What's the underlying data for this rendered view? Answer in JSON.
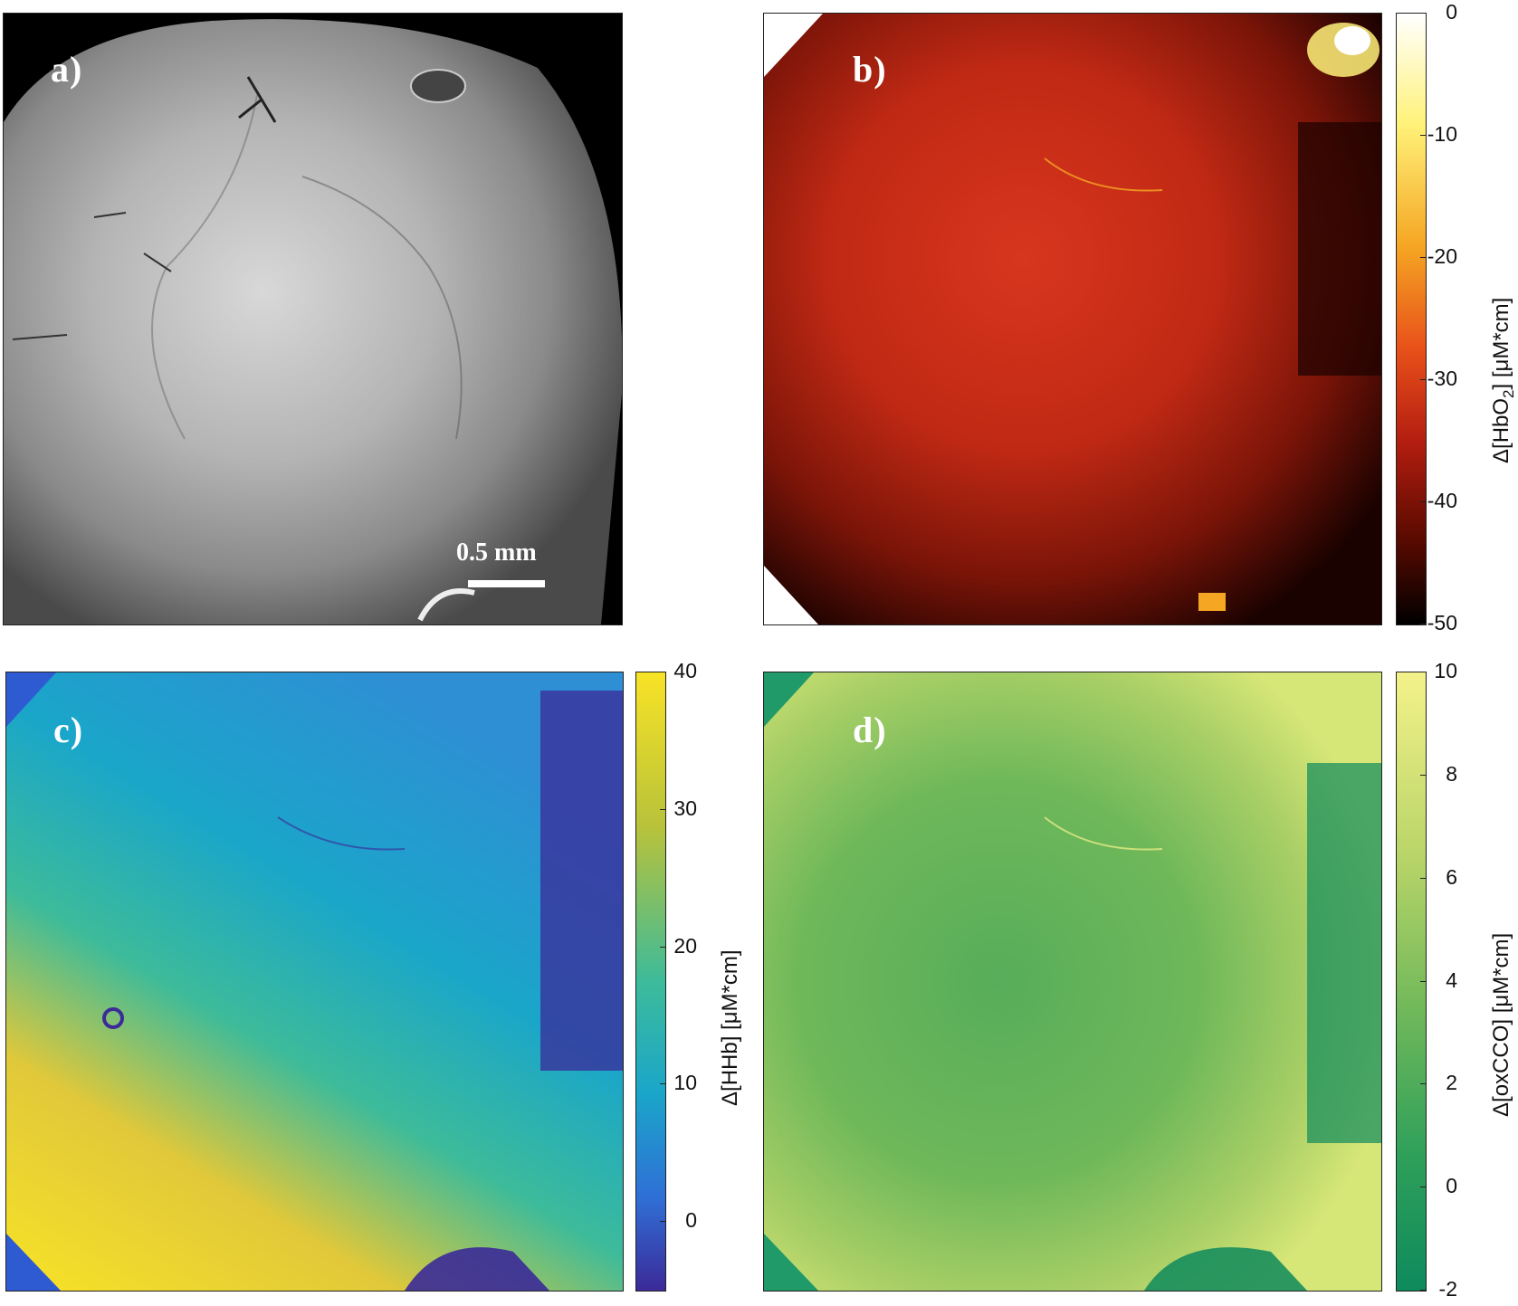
{
  "panels": [
    {
      "label": "a)",
      "scale_bar": "0.5 mm"
    },
    {
      "label": "b)"
    },
    {
      "label": "c)"
    },
    {
      "label": "d)"
    }
  ],
  "colorbars": {
    "b": {
      "ticks": [
        "0",
        "-10",
        "-20",
        "-30",
        "-40",
        "-50"
      ],
      "label_prefix": "Δ[HbO",
      "label_sub": "2",
      "label_suffix": "] [μM*cm]",
      "range": [
        -50,
        0
      ]
    },
    "c": {
      "ticks": [
        "40",
        "30",
        "20",
        "10",
        "0"
      ],
      "label": "Δ[HHb] [μM*cm]",
      "range": [
        -5,
        40
      ]
    },
    "d": {
      "ticks": [
        "10",
        "8",
        "6",
        "4",
        "2",
        "0",
        "-2"
      ],
      "label": "Δ[oxCCO] [μM*cm]",
      "range": [
        -2,
        10
      ]
    }
  },
  "colors": {
    "hbo2_map": [
      "#000000",
      "#5a0a00",
      "#b41e10",
      "#e8501a",
      "#f5a623",
      "#fff27a",
      "#ffffff"
    ],
    "hhb_map": [
      "#3b2a98",
      "#2f6fd6",
      "#1aa6c9",
      "#3dbb9a",
      "#b8c23a",
      "#f8e326"
    ],
    "oxcco_map": [
      "#0e8a5c",
      "#2fa05a",
      "#6fb85a",
      "#b8d468",
      "#f4f28a"
    ]
  }
}
